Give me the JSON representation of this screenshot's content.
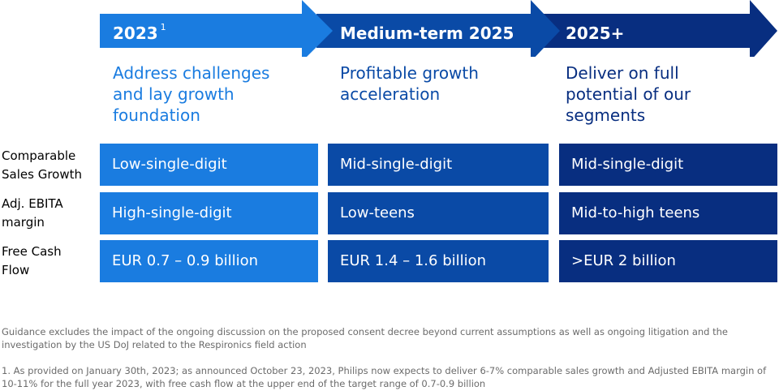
{
  "phases": [
    {
      "label": "2023",
      "superscript": "1",
      "description": "Address challenges and lay growth foundation",
      "color": "#1a7ce0"
    },
    {
      "label": "Medium-term 2025",
      "superscript": "",
      "description": "Profitable growth acceleration",
      "color": "#0a4aa6"
    },
    {
      "label": "2025+",
      "superscript": "",
      "description": "Deliver on full potential of our segments",
      "color": "#082e80"
    }
  ],
  "rows": [
    {
      "label": "Comparable Sales Growth",
      "values": [
        "Low-single-digit",
        "Mid-single-digit",
        "Mid-single-digit"
      ]
    },
    {
      "label": "Adj. EBITA margin",
      "values": [
        "High-single-digit",
        "Low-teens",
        "Mid-to-high teens"
      ]
    },
    {
      "label": "Free Cash Flow",
      "values": [
        "EUR 0.7 – 0.9 billion",
        "EUR 1.4 – 1.6 billion",
        ">EUR 2 billion"
      ]
    }
  ],
  "footnotes": {
    "guidance": "Guidance excludes the impact of the ongoing discussion on the proposed consent decree beyond current assumptions as well as ongoing litigation and the investigation by the US DoJ related to the Respironics field action",
    "note1": "1. As provided on January 30th, 2023; as announced October 23, 2023, Philips now expects to deliver 6-7% comparable sales growth and Adjusted EBITA margin of 10-11% for the full year 2023, with free cash flow at the upper end of the target range of 0.7-0.9 billion"
  }
}
